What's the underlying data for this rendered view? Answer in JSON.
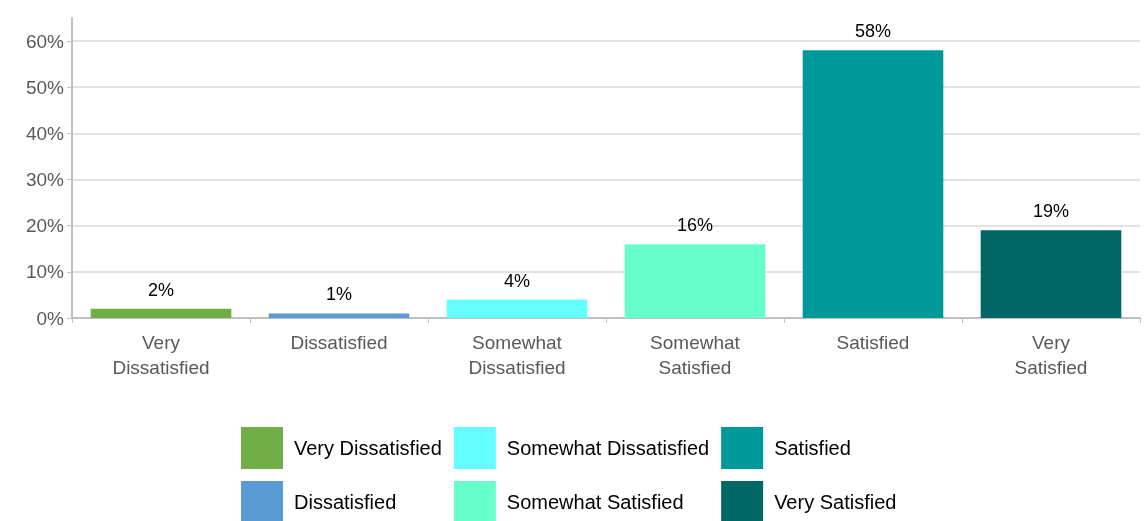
{
  "chart_data": {
    "type": "bar",
    "categories": [
      "Very Dissatisfied",
      "Dissatisfied",
      "Somewhat Dissatisfied",
      "Somewhat Satisfied",
      "Satisfied",
      "Very Satisfied"
    ],
    "series": [
      {
        "name": "Very Dissatisfied",
        "color": "#70ad47",
        "values": [
          2,
          null,
          null,
          null,
          null,
          null
        ],
        "value_labels": [
          "2%",
          null,
          null,
          null,
          null,
          null
        ]
      },
      {
        "name": "Dissatisfied",
        "color": "#5b9bd5",
        "values": [
          null,
          1,
          null,
          null,
          null,
          null
        ],
        "value_labels": [
          null,
          "1%",
          null,
          null,
          null,
          null
        ]
      },
      {
        "name": "Somewhat Dissatisfied",
        "color": "#66ffff",
        "values": [
          null,
          null,
          4,
          null,
          null,
          null
        ],
        "value_labels": [
          null,
          null,
          "4%",
          null,
          null,
          null
        ]
      },
      {
        "name": "Somewhat Satisfied",
        "color": "#66ffcc",
        "values": [
          null,
          null,
          null,
          16,
          null,
          null
        ],
        "value_labels": [
          null,
          null,
          null,
          "16%",
          null,
          null
        ]
      },
      {
        "name": "Satisfied",
        "color": "#009999",
        "values": [
          null,
          null,
          null,
          null,
          58,
          null
        ],
        "value_labels": [
          null,
          null,
          null,
          null,
          "58%",
          null
        ]
      },
      {
        "name": "Very Satisfied",
        "color": "#006666",
        "values": [
          null,
          null,
          null,
          null,
          null,
          19
        ],
        "value_labels": [
          null,
          null,
          null,
          null,
          null,
          "19%"
        ]
      }
    ],
    "ylim": [
      0,
      65
    ],
    "yticks": [
      {
        "value": 0,
        "label": "0%"
      },
      {
        "value": 10,
        "label": "10%"
      },
      {
        "value": 20,
        "label": "20%"
      },
      {
        "value": 30,
        "label": "30%"
      },
      {
        "value": 40,
        "label": "40%"
      },
      {
        "value": 50,
        "label": "50%"
      },
      {
        "value": 60,
        "label": "60%"
      }
    ],
    "grid": "y",
    "legend": "bottom"
  }
}
